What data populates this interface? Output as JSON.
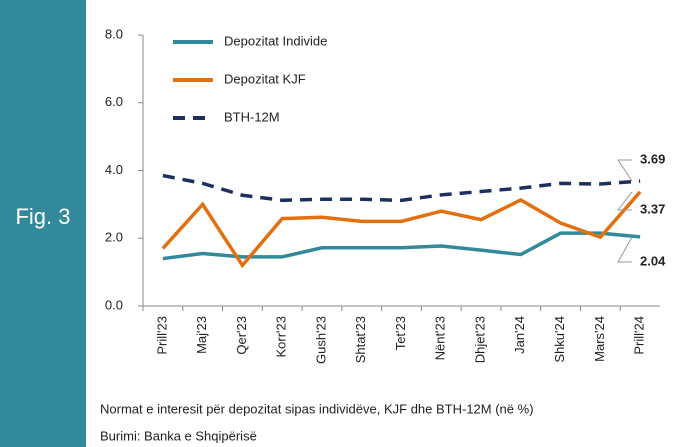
{
  "figure_label": "Fig. 3",
  "chart_data": {
    "type": "line",
    "categories": [
      "Prill'23",
      "Maj'23",
      "Qer'23",
      "Korr'23",
      "Gush'23",
      "Shtat'23",
      "Tet'23",
      "Nënt'23",
      "Dhjet'23",
      "Jan'24",
      "Shku'24",
      "Mars'24",
      "Prill'24"
    ],
    "series": [
      {
        "name": "Depozitat Individe",
        "color": "#31899a",
        "dash": false,
        "values": [
          1.4,
          1.55,
          1.45,
          1.45,
          1.72,
          1.72,
          1.72,
          1.77,
          1.65,
          1.52,
          2.15,
          2.15,
          2.04
        ]
      },
      {
        "name": "Depozitat KJF",
        "color": "#e2700f",
        "dash": false,
        "values": [
          1.7,
          3.0,
          1.2,
          2.58,
          2.62,
          2.5,
          2.5,
          2.8,
          2.55,
          3.13,
          2.45,
          2.03,
          3.37
        ]
      },
      {
        "name": "BTH-12M",
        "color": "#1c2f5e",
        "dash": true,
        "values": [
          3.85,
          3.62,
          3.27,
          3.12,
          3.15,
          3.15,
          3.12,
          3.28,
          3.38,
          3.48,
          3.62,
          3.6,
          3.69
        ]
      }
    ],
    "ylim": [
      0,
      8
    ],
    "yticks": [
      {
        "value": 0,
        "label": "0.0"
      },
      {
        "value": 2,
        "label": "2.0"
      },
      {
        "value": 4,
        "label": "4.0"
      },
      {
        "value": 6,
        "label": "6.0"
      },
      {
        "value": 8,
        "label": "8.0"
      }
    ],
    "legend": "upper left",
    "caption": "Normat e interesit për depozitat sipas individëve, KJF dhe BTH-12M (në %)",
    "source": "Burimi: Banka e Shqipërisë"
  }
}
